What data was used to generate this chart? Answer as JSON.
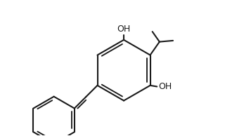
{
  "bg_color": "#ffffff",
  "line_color": "#1a1a1a",
  "line_width": 1.5,
  "font_size": 9,
  "oh_font_size": 9,
  "figsize": [
    3.2,
    1.94
  ],
  "dpi": 100,
  "xlim": [
    -3.5,
    5.5
  ],
  "ylim": [
    -3.2,
    2.8
  ]
}
